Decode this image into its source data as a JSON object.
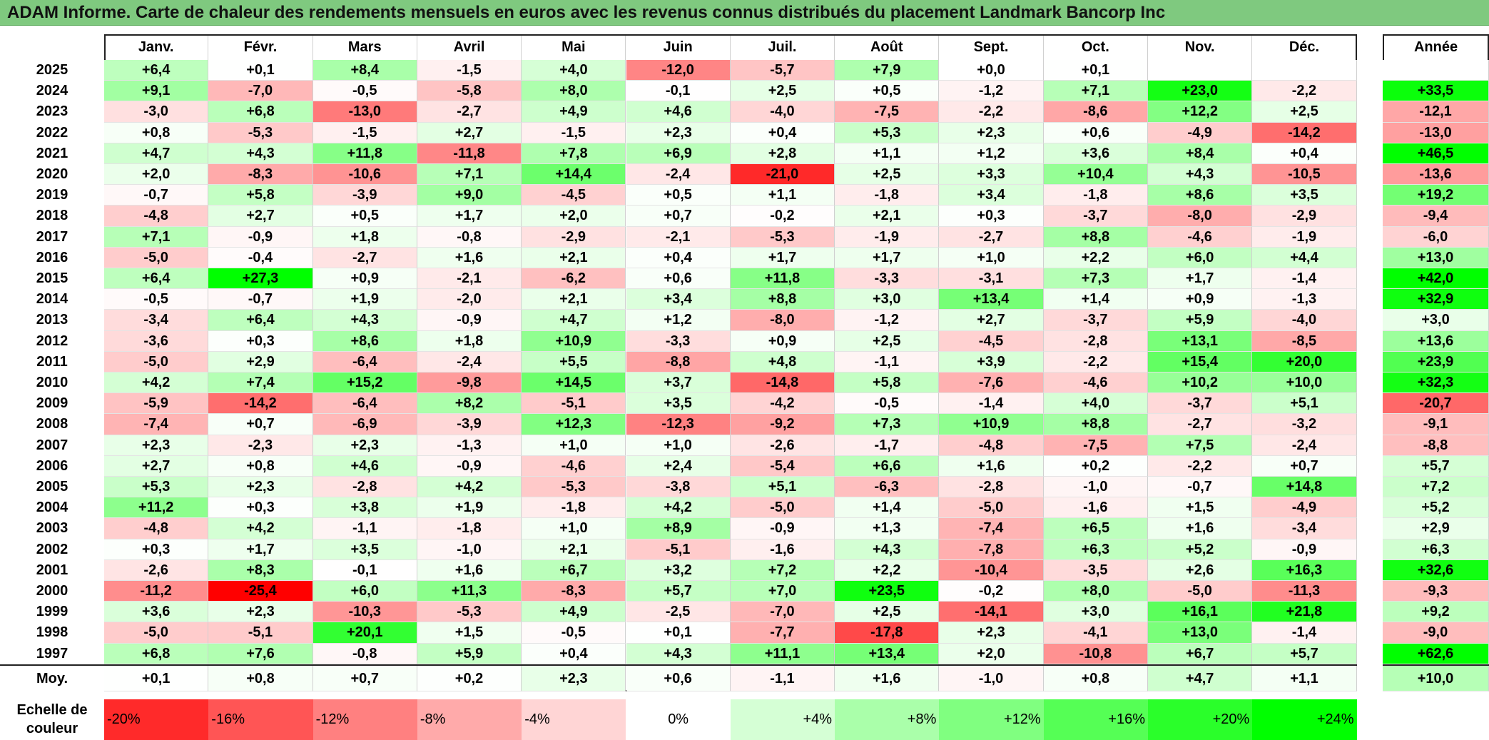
{
  "title": "ADAM Informe. Carte de chaleur des rendements mensuels en euros avec les revenus connus distribués du placement Landmark Bancorp Inc",
  "colors": {
    "title_bg": "#7fc97f",
    "max_red": "#ff0000",
    "max_green": "#00ff00"
  },
  "chart_data": {
    "type": "heatmap",
    "months": [
      "Janv.",
      "Févr.",
      "Mars",
      "Avril",
      "Mai",
      "Juin",
      "Juil.",
      "Août",
      "Sept.",
      "Oct.",
      "Nov.",
      "Déc."
    ],
    "year_header": "Année",
    "rows": [
      {
        "year": "2025",
        "values": [
          "+6,4",
          "+0,1",
          "+8,4",
          "-1,5",
          "+4,0",
          "-12,0",
          "-5,7",
          "+7,9",
          "+0,0",
          "+0,1",
          "",
          ""
        ],
        "annual": ""
      },
      {
        "year": "2024",
        "values": [
          "+9,1",
          "-7,0",
          "-0,5",
          "-5,8",
          "+8,0",
          "-0,1",
          "+2,5",
          "+0,5",
          "-1,2",
          "+7,1",
          "+23,0",
          "-2,2"
        ],
        "annual": "+33,5"
      },
      {
        "year": "2023",
        "values": [
          "-3,0",
          "+6,8",
          "-13,0",
          "-2,7",
          "+4,9",
          "+4,6",
          "-4,0",
          "-7,5",
          "-2,2",
          "-8,6",
          "+12,2",
          "+2,5"
        ],
        "annual": "-12,1"
      },
      {
        "year": "2022",
        "values": [
          "+0,8",
          "-5,3",
          "-1,5",
          "+2,7",
          "-1,5",
          "+2,3",
          "+0,4",
          "+5,3",
          "+2,3",
          "+0,6",
          "-4,9",
          "-14,2"
        ],
        "annual": "-13,0"
      },
      {
        "year": "2021",
        "values": [
          "+4,7",
          "+4,3",
          "+11,8",
          "-11,8",
          "+7,8",
          "+6,9",
          "+2,8",
          "+1,1",
          "+1,2",
          "+3,6",
          "+8,4",
          "+0,4"
        ],
        "annual": "+46,5"
      },
      {
        "year": "2020",
        "values": [
          "+2,0",
          "-8,3",
          "-10,6",
          "+7,1",
          "+14,4",
          "-2,4",
          "-21,0",
          "+2,5",
          "+3,3",
          "+10,4",
          "+4,3",
          "-10,5"
        ],
        "annual": "-13,6"
      },
      {
        "year": "2019",
        "values": [
          "-0,7",
          "+5,8",
          "-3,9",
          "+9,0",
          "-4,5",
          "+0,5",
          "+1,1",
          "-1,8",
          "+3,4",
          "-1,8",
          "+8,6",
          "+3,5"
        ],
        "annual": "+19,2"
      },
      {
        "year": "2018",
        "values": [
          "-4,8",
          "+2,7",
          "+0,5",
          "+1,7",
          "+2,0",
          "+0,7",
          "-0,2",
          "+2,1",
          "+0,3",
          "-3,7",
          "-8,0",
          "-2,9"
        ],
        "annual": "-9,4"
      },
      {
        "year": "2017",
        "values": [
          "+7,1",
          "-0,9",
          "+1,8",
          "-0,8",
          "-2,9",
          "-2,1",
          "-5,3",
          "-1,9",
          "-2,7",
          "+8,8",
          "-4,6",
          "-1,9"
        ],
        "annual": "-6,0"
      },
      {
        "year": "2016",
        "values": [
          "-5,0",
          "-0,4",
          "-2,7",
          "+1,6",
          "+2,1",
          "+0,4",
          "+1,7",
          "+1,7",
          "+1,0",
          "+2,2",
          "+6,0",
          "+4,4"
        ],
        "annual": "+13,0"
      },
      {
        "year": "2015",
        "values": [
          "+6,4",
          "+27,3",
          "+0,9",
          "-2,1",
          "-6,2",
          "+0,6",
          "+11,8",
          "-3,3",
          "-3,1",
          "+7,3",
          "+1,7",
          "-1,4"
        ],
        "annual": "+42,0"
      },
      {
        "year": "2014",
        "values": [
          "-0,5",
          "-0,7",
          "+1,9",
          "-2,0",
          "+2,1",
          "+3,4",
          "+8,8",
          "+3,0",
          "+13,4",
          "+1,4",
          "+0,9",
          "-1,3"
        ],
        "annual": "+32,9"
      },
      {
        "year": "2013",
        "values": [
          "-3,4",
          "+6,4",
          "+4,3",
          "-0,9",
          "+4,7",
          "+1,2",
          "-8,0",
          "-1,2",
          "+2,7",
          "-3,7",
          "+5,9",
          "-4,0"
        ],
        "annual": "+3,0"
      },
      {
        "year": "2012",
        "values": [
          "-3,6",
          "+0,3",
          "+8,6",
          "+1,8",
          "+10,9",
          "-3,3",
          "+0,9",
          "+2,5",
          "-4,5",
          "-2,8",
          "+13,1",
          "-8,5"
        ],
        "annual": "+13,6"
      },
      {
        "year": "2011",
        "values": [
          "-5,0",
          "+2,9",
          "-6,4",
          "-2,4",
          "+5,5",
          "-8,8",
          "+4,8",
          "-1,1",
          "+3,9",
          "-2,2",
          "+15,4",
          "+20,0"
        ],
        "annual": "+23,9"
      },
      {
        "year": "2010",
        "values": [
          "+4,2",
          "+7,4",
          "+15,2",
          "-9,8",
          "+14,5",
          "+3,7",
          "-14,8",
          "+5,8",
          "-7,6",
          "-4,6",
          "+10,2",
          "+10,0"
        ],
        "annual": "+32,3"
      },
      {
        "year": "2009",
        "values": [
          "-5,9",
          "-14,2",
          "-6,4",
          "+8,2",
          "-5,1",
          "+3,5",
          "-4,2",
          "-0,5",
          "-1,4",
          "+4,0",
          "-3,7",
          "+5,1"
        ],
        "annual": "-20,7"
      },
      {
        "year": "2008",
        "values": [
          "-7,4",
          "+0,7",
          "-6,9",
          "-3,9",
          "+12,3",
          "-12,3",
          "-9,2",
          "+7,3",
          "+10,9",
          "+8,8",
          "-2,7",
          "-3,2"
        ],
        "annual": "-9,1"
      },
      {
        "year": "2007",
        "values": [
          "+2,3",
          "-2,3",
          "+2,3",
          "-1,3",
          "+1,0",
          "+1,0",
          "-2,6",
          "-1,7",
          "-4,8",
          "-7,5",
          "+7,5",
          "-2,4"
        ],
        "annual": "-8,8"
      },
      {
        "year": "2006",
        "values": [
          "+2,7",
          "+0,8",
          "+4,6",
          "-0,9",
          "-4,6",
          "+2,4",
          "-5,4",
          "+6,6",
          "+1,6",
          "+0,2",
          "-2,2",
          "+0,7"
        ],
        "annual": "+5,7"
      },
      {
        "year": "2005",
        "values": [
          "+5,3",
          "+2,3",
          "-2,8",
          "+4,2",
          "-5,3",
          "-3,8",
          "+5,1",
          "-6,3",
          "-2,8",
          "-1,0",
          "-0,7",
          "+14,8"
        ],
        "annual": "+7,2"
      },
      {
        "year": "2004",
        "values": [
          "+11,2",
          "+0,3",
          "+3,8",
          "+1,9",
          "-1,8",
          "+4,2",
          "-5,0",
          "+1,4",
          "-5,0",
          "-1,6",
          "+1,5",
          "-4,9"
        ],
        "annual": "+5,2"
      },
      {
        "year": "2003",
        "values": [
          "-4,8",
          "+4,2",
          "-1,1",
          "-1,8",
          "+1,0",
          "+8,9",
          "-0,9",
          "+1,3",
          "-7,4",
          "+6,5",
          "+1,6",
          "-3,4"
        ],
        "annual": "+2,9"
      },
      {
        "year": "2002",
        "values": [
          "+0,3",
          "+1,7",
          "+3,5",
          "-1,0",
          "+2,1",
          "-5,1",
          "-1,6",
          "+4,3",
          "-7,8",
          "+6,3",
          "+5,2",
          "-0,9"
        ],
        "annual": "+6,3"
      },
      {
        "year": "2001",
        "values": [
          "-2,6",
          "+8,3",
          "-0,1",
          "+1,6",
          "+6,7",
          "+3,2",
          "+7,2",
          "+2,2",
          "-10,4",
          "-3,5",
          "+2,6",
          "+16,3"
        ],
        "annual": "+32,6"
      },
      {
        "year": "2000",
        "values": [
          "-11,2",
          "-25,4",
          "+6,0",
          "+11,3",
          "-8,3",
          "+5,7",
          "+7,0",
          "+23,5",
          "-0,2",
          "+8,0",
          "-5,0",
          "-11,3"
        ],
        "annual": "-9,3"
      },
      {
        "year": "1999",
        "values": [
          "+3,6",
          "+2,3",
          "-10,3",
          "-5,3",
          "+4,9",
          "-2,5",
          "-7,0",
          "+2,5",
          "-14,1",
          "+3,0",
          "+16,1",
          "+21,8"
        ],
        "annual": "+9,2"
      },
      {
        "year": "1998",
        "values": [
          "-5,0",
          "-5,1",
          "+20,1",
          "+1,5",
          "-0,5",
          "+0,1",
          "-7,7",
          "-17,8",
          "+2,3",
          "-4,1",
          "+13,0",
          "-1,4"
        ],
        "annual": "-9,0"
      },
      {
        "year": "1997",
        "values": [
          "+6,8",
          "+7,6",
          "-0,8",
          "+5,9",
          "+0,4",
          "+4,3",
          "+11,1",
          "+13,4",
          "+2,0",
          "-10,8",
          "+6,7",
          "+5,7"
        ],
        "annual": "+62,6"
      }
    ],
    "average": {
      "label": "Moy.",
      "values": [
        "+0,1",
        "+0,8",
        "+0,7",
        "+0,2",
        "+2,3",
        "+0,6",
        "-1,1",
        "+1,6",
        "-1,0",
        "+0,8",
        "+4,7",
        "+1,1"
      ],
      "annual": "+10,0"
    },
    "scale": {
      "label_line1": "Echelle de",
      "label_line2": "couleur",
      "steps": [
        {
          "label": "-20%",
          "value": -20
        },
        {
          "label": "-16%",
          "value": -16
        },
        {
          "label": "-12%",
          "value": -12
        },
        {
          "label": "-8%",
          "value": -8
        },
        {
          "label": "-4%",
          "value": -4
        },
        {
          "label": "0%",
          "value": 0
        },
        {
          "label": "+4%",
          "value": 4
        },
        {
          "label": "+8%",
          "value": 8
        },
        {
          "label": "+12%",
          "value": 12
        },
        {
          "label": "+16%",
          "value": 16
        },
        {
          "label": "+20%",
          "value": 20
        },
        {
          "label": "+24%",
          "value": 24
        }
      ]
    }
  }
}
